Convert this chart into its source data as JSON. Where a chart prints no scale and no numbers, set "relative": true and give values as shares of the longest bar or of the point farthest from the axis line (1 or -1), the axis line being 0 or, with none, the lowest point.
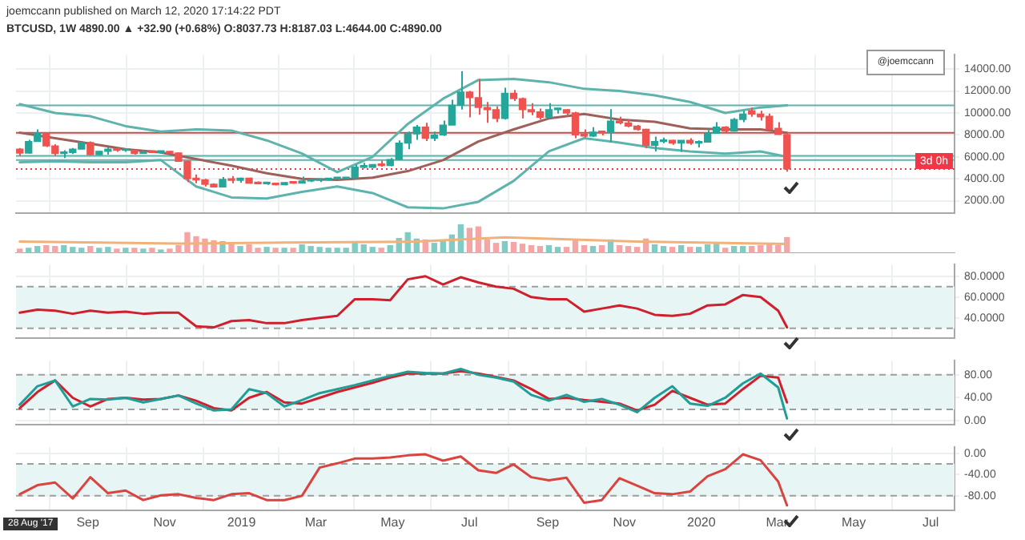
{
  "chart_data": [
    {
      "type": "candlestick",
      "title": "joemccann published on March 12, 2020 17:14:22 PDT",
      "subtitle": "BTCUSD, 1W 4890.00 ▲ +32.90 (+0.68%) O:8037.73 H:8187.03 L:4644.00 C:4890.00",
      "x": [
        "2018-07-09",
        "2018-07-16",
        "2018-07-23",
        "2018-07-30",
        "2018-08-06",
        "2018-08-13",
        "2018-08-20",
        "2018-08-27",
        "2018-09-03",
        "2018-09-10",
        "2018-09-17",
        "2018-09-24",
        "2018-10-01",
        "2018-10-08",
        "2018-10-15",
        "2018-10-22",
        "2018-10-29",
        "2018-11-05",
        "2018-11-12",
        "2018-11-19",
        "2018-11-26",
        "2018-12-03",
        "2018-12-10",
        "2018-12-17",
        "2018-12-24",
        "2018-12-31",
        "2019-01-07",
        "2019-01-14",
        "2019-01-21",
        "2019-01-28",
        "2019-02-04",
        "2019-02-11",
        "2019-02-18",
        "2019-02-25",
        "2019-03-04",
        "2019-03-11",
        "2019-03-18",
        "2019-03-25",
        "2019-04-01",
        "2019-04-08",
        "2019-04-15",
        "2019-04-22",
        "2019-04-29",
        "2019-05-06",
        "2019-05-13",
        "2019-05-20",
        "2019-05-27",
        "2019-06-03",
        "2019-06-10",
        "2019-06-17",
        "2019-06-24",
        "2019-07-01",
        "2019-07-08",
        "2019-07-15",
        "2019-07-22",
        "2019-07-29",
        "2019-08-05",
        "2019-08-12",
        "2019-08-19",
        "2019-08-26",
        "2019-09-02",
        "2019-09-09",
        "2019-09-16",
        "2019-09-23",
        "2019-09-30",
        "2019-10-07",
        "2019-10-14",
        "2019-10-21",
        "2019-10-28",
        "2019-11-04",
        "2019-11-11",
        "2019-11-18",
        "2019-11-25",
        "2019-12-02",
        "2019-12-09",
        "2019-12-16",
        "2019-12-23",
        "2019-12-30",
        "2020-01-06",
        "2020-01-13",
        "2020-01-20",
        "2020-01-27",
        "2020-02-03",
        "2020-02-10",
        "2020-02-17",
        "2020-02-24",
        "2020-03-02",
        "2020-03-09"
      ],
      "ohlc": [
        [
          6700,
          6800,
          6100,
          6350
        ],
        [
          6350,
          7550,
          6300,
          7400
        ],
        [
          7400,
          8500,
          7400,
          8200
        ],
        [
          8200,
          8250,
          6900,
          7000
        ],
        [
          7000,
          7150,
          6100,
          6300
        ],
        [
          6300,
          6600,
          5900,
          6400
        ],
        [
          6400,
          6800,
          6250,
          6700
        ],
        [
          6700,
          7400,
          6700,
          7300
        ],
        [
          7300,
          7400,
          6150,
          6200
        ],
        [
          6200,
          6550,
          6150,
          6500
        ],
        [
          6500,
          6850,
          6200,
          6700
        ],
        [
          6700,
          6800,
          6450,
          6600
        ],
        [
          6600,
          6700,
          6450,
          6600
        ],
        [
          6600,
          6650,
          6200,
          6300
        ],
        [
          6300,
          6600,
          6300,
          6450
        ],
        [
          6450,
          6500,
          6350,
          6400
        ],
        [
          6400,
          6450,
          6300,
          6400
        ],
        [
          6400,
          6550,
          6350,
          6350
        ],
        [
          6350,
          6400,
          5600,
          5600
        ],
        [
          5600,
          5650,
          3700,
          4000
        ],
        [
          4000,
          4400,
          3600,
          3900
        ],
        [
          3900,
          4000,
          3300,
          3500
        ],
        [
          3500,
          3600,
          3200,
          3250
        ],
        [
          3250,
          4150,
          3250,
          3950
        ],
        [
          3950,
          4250,
          3600,
          3850
        ],
        [
          3850,
          4100,
          3650,
          4050
        ],
        [
          4050,
          4100,
          3550,
          3600
        ],
        [
          3600,
          3750,
          3500,
          3550
        ],
        [
          3550,
          3650,
          3450,
          3550
        ],
        [
          3550,
          3600,
          3400,
          3450
        ],
        [
          3450,
          3700,
          3400,
          3650
        ],
        [
          3650,
          3700,
          3550,
          3600
        ],
        [
          3600,
          4200,
          3600,
          3800
        ],
        [
          3800,
          3900,
          3700,
          3850
        ],
        [
          3850,
          3950,
          3700,
          3900
        ],
        [
          3900,
          4050,
          3850,
          4000
        ],
        [
          4000,
          4100,
          3900,
          4000
        ],
        [
          4000,
          4150,
          3950,
          4100
        ],
        [
          4100,
          5300,
          4100,
          5050
        ],
        [
          5050,
          5450,
          4950,
          5050
        ],
        [
          5050,
          5350,
          5000,
          5300
        ],
        [
          5300,
          5650,
          5100,
          5200
        ],
        [
          5200,
          5900,
          5150,
          5750
        ],
        [
          5750,
          7500,
          5700,
          7250
        ],
        [
          7250,
          8300,
          6700,
          8100
        ],
        [
          8100,
          8900,
          7550,
          8700
        ],
        [
          8700,
          9100,
          7450,
          7700
        ],
        [
          7700,
          8300,
          7450,
          8000
        ],
        [
          8000,
          9300,
          7900,
          8900
        ],
        [
          8900,
          11200,
          8900,
          10700
        ],
        [
          10700,
          13800,
          10300,
          11900
        ],
        [
          11900,
          12000,
          9600,
          11400
        ],
        [
          11400,
          13100,
          9850,
          10500
        ],
        [
          10500,
          11000,
          9100,
          10300
        ],
        [
          10300,
          10600,
          9150,
          9500
        ],
        [
          9500,
          12300,
          9400,
          11800
        ],
        [
          11800,
          12100,
          11100,
          11300
        ],
        [
          11300,
          11400,
          9500,
          10300
        ],
        [
          10300,
          10900,
          9800,
          10100
        ],
        [
          10100,
          10400,
          9400,
          9600
        ],
        [
          9600,
          10900,
          9600,
          10300
        ],
        [
          10300,
          10450,
          9950,
          10300
        ],
        [
          10300,
          10350,
          9700,
          10000
        ],
        [
          10000,
          10100,
          7700,
          8000
        ],
        [
          8000,
          8500,
          7750,
          7900
        ],
        [
          7900,
          8700,
          7800,
          8250
        ],
        [
          8250,
          8400,
          7950,
          8200
        ],
        [
          8200,
          10350,
          7300,
          9250
        ],
        [
          9250,
          9650,
          8950,
          9100
        ],
        [
          9100,
          9400,
          8700,
          8800
        ],
        [
          8800,
          8900,
          8400,
          8500
        ],
        [
          8500,
          8550,
          6800,
          7050
        ],
        [
          7050,
          7850,
          6500,
          7400
        ],
        [
          7400,
          7750,
          7250,
          7500
        ],
        [
          7500,
          7550,
          7100,
          7250
        ],
        [
          7250,
          7500,
          6450,
          7500
        ],
        [
          7500,
          7700,
          7100,
          7250
        ],
        [
          7250,
          7500,
          6850,
          7350
        ],
        [
          7350,
          8450,
          7350,
          8150
        ],
        [
          8150,
          9150,
          8100,
          8700
        ],
        [
          8700,
          8800,
          8250,
          8350
        ],
        [
          8350,
          9550,
          8300,
          9400
        ],
        [
          9400,
          10200,
          9150,
          9900
        ],
        [
          10200,
          10500,
          9650,
          9900
        ],
        [
          9900,
          10200,
          9300,
          9650
        ],
        [
          9700,
          9950,
          8450,
          8500
        ],
        [
          8600,
          9150,
          8000,
          8040
        ],
        [
          8037.73,
          8187.03,
          4644,
          4890
        ]
      ],
      "colors": [
        "#ef5350",
        "#26a69a",
        "#26a69a",
        "#ef5350",
        "#ef5350",
        "#26a69a",
        "#26a69a",
        "#26a69a",
        "#ef5350",
        "#26a69a",
        "#26a69a",
        "#ef5350",
        "#26a69a",
        "#ef5350",
        "#26a69a",
        "#ef5350",
        "#26a69a",
        "#ef5350",
        "#ef5350",
        "#ef5350",
        "#ef5350",
        "#ef5350",
        "#ef5350",
        "#26a69a",
        "#ef5350",
        "#26a69a",
        "#ef5350",
        "#ef5350",
        "#26a69a",
        "#ef5350",
        "#26a69a",
        "#ef5350",
        "#26a69a",
        "#26a69a",
        "#26a69a",
        "#26a69a",
        "#26a69a",
        "#26a69a",
        "#26a69a",
        "#26a69a",
        "#26a69a",
        "#ef5350",
        "#26a69a",
        "#26a69a",
        "#26a69a",
        "#26a69a",
        "#ef5350",
        "#26a69a",
        "#26a69a",
        "#26a69a",
        "#26a69a",
        "#ef5350",
        "#ef5350",
        "#ef5350",
        "#ef5350",
        "#26a69a",
        "#ef5350",
        "#ef5350",
        "#ef5350",
        "#ef5350",
        "#26a69a",
        "#26a69a",
        "#ef5350",
        "#ef5350",
        "#ef5350",
        "#26a69a",
        "#ef5350",
        "#26a69a",
        "#ef5350",
        "#ef5350",
        "#ef5350",
        "#ef5350",
        "#26a69a",
        "#26a69a",
        "#ef5350",
        "#26a69a",
        "#ef5350",
        "#26a69a",
        "#26a69a",
        "#26a69a",
        "#ef5350",
        "#26a69a",
        "#26a69a",
        "#ef5350",
        "#ef5350",
        "#ef5350",
        "#ef5350",
        "#ef5350"
      ],
      "series": [
        {
          "type": "line",
          "color": "#5fb3ad",
          "x": [
            "2018-07-09",
            "2018-08-06",
            "2018-09-03",
            "2018-10-01",
            "2018-10-29",
            "2018-11-26",
            "2018-12-24",
            "2019-01-21",
            "2019-02-18",
            "2019-03-18",
            "2019-04-15",
            "2019-05-13",
            "2019-06-10",
            "2019-07-08",
            "2019-08-05",
            "2019-09-02",
            "2019-09-30",
            "2019-10-28",
            "2019-11-25",
            "2019-12-23",
            "2020-01-20",
            "2020-02-17",
            "2020-03-09"
          ],
          "values": [
            10800,
            10000,
            9700,
            8800,
            8300,
            8500,
            8400,
            7500,
            6300,
            4600,
            6000,
            9000,
            11300,
            13000,
            13100,
            12800,
            12200,
            12000,
            11600,
            11000,
            10000,
            10500,
            10700
          ]
        },
        {
          "type": "line",
          "color": "#a0605a",
          "x": [
            "2018-07-09",
            "2018-08-06",
            "2018-09-03",
            "2018-10-01",
            "2018-10-29",
            "2018-11-26",
            "2018-12-24",
            "2019-01-21",
            "2019-02-18",
            "2019-03-18",
            "2019-04-15",
            "2019-05-13",
            "2019-06-10",
            "2019-07-08",
            "2019-08-05",
            "2019-09-02",
            "2019-09-30",
            "2019-10-28",
            "2019-11-25",
            "2019-12-23",
            "2020-01-20",
            "2020-02-17",
            "2020-03-09"
          ],
          "values": [
            8200,
            7700,
            7200,
            6700,
            6400,
            5800,
            5200,
            4500,
            4000,
            3900,
            4100,
            4700,
            5700,
            7400,
            8500,
            9500,
            9900,
            9400,
            9200,
            8600,
            8500,
            8500,
            8200
          ]
        },
        {
          "type": "line",
          "color": "#5fb3ad",
          "x": [
            "2018-07-09",
            "2018-08-06",
            "2018-09-03",
            "2018-10-01",
            "2018-10-29",
            "2018-11-26",
            "2018-12-24",
            "2019-01-21",
            "2019-02-18",
            "2019-03-18",
            "2019-04-15",
            "2019-05-13",
            "2019-06-10",
            "2019-07-08",
            "2019-08-05",
            "2019-09-02",
            "2019-09-30",
            "2019-10-28",
            "2019-11-25",
            "2019-12-23",
            "2020-01-20",
            "2020-02-17",
            "2020-03-09"
          ],
          "values": [
            5500,
            5600,
            5500,
            5500,
            5700,
            3300,
            2300,
            2200,
            2800,
            3300,
            2700,
            1400,
            1300,
            1900,
            3800,
            6500,
            7700,
            7300,
            6800,
            6500,
            6300,
            6500,
            6000
          ]
        }
      ],
      "xlim": [
        "2018-07-06",
        "2020-07-20"
      ],
      "xticks": [
        {
          "value": "2018-09-01",
          "label": null
        },
        {
          "value": "2018-11-01",
          "label": null
        },
        {
          "value": "2019-01-01",
          "label": null
        },
        {
          "value": "2019-03-01",
          "label": null
        },
        {
          "value": "2019-05-01",
          "label": null
        },
        {
          "value": "2019-07-01",
          "label": null
        },
        {
          "value": "2019-09-01",
          "label": null
        },
        {
          "value": "2019-11-01",
          "label": null
        },
        {
          "value": "2020-01-01",
          "label": null
        },
        {
          "value": "2020-03-01",
          "label": null
        },
        {
          "value": "2020-05-01",
          "label": null
        },
        {
          "value": "2020-07-01",
          "label": null
        }
      ],
      "ylim": [
        900,
        15300
      ],
      "yticks": [
        {
          "value": 2000,
          "label": "2000.00"
        },
        {
          "value": 4000,
          "label": "4000.00"
        },
        {
          "value": 6000,
          "label": "6000.00"
        },
        {
          "value": 8000,
          "label": "8000.00"
        },
        {
          "value": 10000,
          "label": "10000.00"
        },
        {
          "value": 12000,
          "label": "12000.00"
        },
        {
          "value": 14000,
          "label": "14000.00"
        }
      ],
      "tick_labels": "y",
      "grid": true,
      "ref_lines": [
        {
          "axis": "y",
          "value": 10700,
          "color": "#5fb3ad"
        },
        {
          "axis": "y",
          "value": 8200,
          "color": "#c0504d"
        },
        {
          "axis": "y",
          "value": 6100,
          "color": "#5fb3ad"
        },
        {
          "axis": "y",
          "value": 5700,
          "color": "#5fb3ad"
        },
        {
          "axis": "y",
          "value": 4890,
          "color": "#f23645",
          "line_style": "dotted",
          "label": "3d 0h"
        }
      ],
      "annotations": [
        "@joemccann"
      ]
    },
    {
      "type": "bar",
      "relative": true,
      "x": [
        "2018-07-09",
        "2018-07-16",
        "2018-07-23",
        "2018-07-30",
        "2018-08-06",
        "2018-08-13",
        "2018-08-20",
        "2018-08-27",
        "2018-09-03",
        "2018-09-10",
        "2018-09-17",
        "2018-09-24",
        "2018-10-01",
        "2018-10-08",
        "2018-10-15",
        "2018-10-22",
        "2018-10-29",
        "2018-11-05",
        "2018-11-12",
        "2018-11-19",
        "2018-11-26",
        "2018-12-03",
        "2018-12-10",
        "2018-12-17",
        "2018-12-24",
        "2018-12-31",
        "2019-01-07",
        "2019-01-14",
        "2019-01-21",
        "2019-01-28",
        "2019-02-04",
        "2019-02-11",
        "2019-02-18",
        "2019-02-25",
        "2019-03-04",
        "2019-03-11",
        "2019-03-18",
        "2019-03-25",
        "2019-04-01",
        "2019-04-08",
        "2019-04-15",
        "2019-04-22",
        "2019-04-29",
        "2019-05-06",
        "2019-05-13",
        "2019-05-20",
        "2019-05-27",
        "2019-06-03",
        "2019-06-10",
        "2019-06-17",
        "2019-06-24",
        "2019-07-01",
        "2019-07-08",
        "2019-07-15",
        "2019-07-22",
        "2019-07-29",
        "2019-08-05",
        "2019-08-12",
        "2019-08-19",
        "2019-08-26",
        "2019-09-02",
        "2019-09-09",
        "2019-09-16",
        "2019-09-23",
        "2019-09-30",
        "2019-10-07",
        "2019-10-14",
        "2019-10-21",
        "2019-10-28",
        "2019-11-04",
        "2019-11-11",
        "2019-11-18",
        "2019-11-25",
        "2019-12-02",
        "2019-12-09",
        "2019-12-16",
        "2019-12-23",
        "2019-12-30",
        "2020-01-06",
        "2020-01-13",
        "2020-01-20",
        "2020-01-27",
        "2020-02-03",
        "2020-02-10",
        "2020-02-17",
        "2020-02-24",
        "2020-03-02",
        "2020-03-09"
      ],
      "xlim": [
        "2018-07-06",
        "2020-07-20"
      ],
      "tick_labels": false,
      "series": [
        {
          "type": "bar",
          "values": [
            0.14,
            0.17,
            0.23,
            0.26,
            0.23,
            0.26,
            0.2,
            0.17,
            0.23,
            0.17,
            0.2,
            0.14,
            0.17,
            0.17,
            0.14,
            0.17,
            0.11,
            0.14,
            0.26,
            0.71,
            0.57,
            0.49,
            0.43,
            0.4,
            0.34,
            0.23,
            0.29,
            0.17,
            0.2,
            0.17,
            0.17,
            0.17,
            0.29,
            0.23,
            0.2,
            0.17,
            0.17,
            0.17,
            0.4,
            0.29,
            0.2,
            0.17,
            0.26,
            0.51,
            0.71,
            0.49,
            0.46,
            0.34,
            0.4,
            0.63,
            1,
            0.86,
            0.91,
            0.46,
            0.34,
            0.4,
            0.37,
            0.31,
            0.26,
            0.23,
            0.26,
            0.2,
            0.2,
            0.43,
            0.26,
            0.23,
            0.26,
            0.46,
            0.26,
            0.23,
            0.2,
            0.49,
            0.29,
            0.23,
            0.2,
            0.26,
            0.2,
            0.2,
            0.29,
            0.31,
            0.17,
            0.23,
            0.23,
            0.23,
            0.26,
            0.29,
            0.26,
            0.54
          ],
          "colors": [
            "#f5a5a5",
            "#80cbc4",
            "#80cbc4",
            "#f5a5a5",
            "#f5a5a5",
            "#80cbc4",
            "#80cbc4",
            "#80cbc4",
            "#f5a5a5",
            "#80cbc4",
            "#80cbc4",
            "#f5a5a5",
            "#80cbc4",
            "#f5a5a5",
            "#80cbc4",
            "#f5a5a5",
            "#80cbc4",
            "#f5a5a5",
            "#f5a5a5",
            "#f5a5a5",
            "#f5a5a5",
            "#f5a5a5",
            "#f5a5a5",
            "#80cbc4",
            "#f5a5a5",
            "#80cbc4",
            "#f5a5a5",
            "#f5a5a5",
            "#80cbc4",
            "#f5a5a5",
            "#80cbc4",
            "#f5a5a5",
            "#80cbc4",
            "#80cbc4",
            "#80cbc4",
            "#80cbc4",
            "#80cbc4",
            "#80cbc4",
            "#80cbc4",
            "#80cbc4",
            "#80cbc4",
            "#f5a5a5",
            "#80cbc4",
            "#80cbc4",
            "#80cbc4",
            "#80cbc4",
            "#f5a5a5",
            "#80cbc4",
            "#80cbc4",
            "#80cbc4",
            "#80cbc4",
            "#f5a5a5",
            "#f5a5a5",
            "#f5a5a5",
            "#f5a5a5",
            "#80cbc4",
            "#f5a5a5",
            "#f5a5a5",
            "#f5a5a5",
            "#f5a5a5",
            "#80cbc4",
            "#80cbc4",
            "#f5a5a5",
            "#f5a5a5",
            "#f5a5a5",
            "#80cbc4",
            "#f5a5a5",
            "#80cbc4",
            "#f5a5a5",
            "#f5a5a5",
            "#f5a5a5",
            "#f5a5a5",
            "#80cbc4",
            "#80cbc4",
            "#f5a5a5",
            "#80cbc4",
            "#f5a5a5",
            "#80cbc4",
            "#80cbc4",
            "#80cbc4",
            "#f5a5a5",
            "#80cbc4",
            "#80cbc4",
            "#f5a5a5",
            "#f5a5a5",
            "#f5a5a5",
            "#f5a5a5",
            "#f5a5a5"
          ]
        },
        {
          "type": "line",
          "color": "#f0b27a",
          "x": [
            "2018-07-09",
            "2018-11-12",
            "2019-02-04",
            "2019-05-20",
            "2019-07-29",
            "2019-11-11",
            "2020-03-09"
          ],
          "values": [
            0.4,
            0.33,
            0.37,
            0.4,
            0.55,
            0.4,
            0.32
          ]
        }
      ]
    },
    {
      "type": "line",
      "x": [
        "2018-07-09",
        "2018-07-23",
        "2018-08-06",
        "2018-08-20",
        "2018-09-03",
        "2018-09-17",
        "2018-10-01",
        "2018-10-15",
        "2018-10-29",
        "2018-11-12",
        "2018-11-26",
        "2018-12-10",
        "2018-12-24",
        "2019-01-07",
        "2019-01-21",
        "2019-02-04",
        "2019-02-18",
        "2019-03-04",
        "2019-03-18",
        "2019-04-01",
        "2019-04-15",
        "2019-04-29",
        "2019-05-13",
        "2019-05-27",
        "2019-06-10",
        "2019-06-24",
        "2019-07-08",
        "2019-07-22",
        "2019-08-05",
        "2019-08-19",
        "2019-09-02",
        "2019-09-16",
        "2019-09-30",
        "2019-10-14",
        "2019-10-28",
        "2019-11-11",
        "2019-11-25",
        "2019-12-09",
        "2019-12-23",
        "2020-01-06",
        "2020-01-20",
        "2020-02-03",
        "2020-02-17",
        "2020-03-02",
        "2020-03-09"
      ],
      "series": [
        {
          "type": "line",
          "color": "#d0202e",
          "values": [
            45,
            48,
            47,
            44,
            47,
            45,
            46,
            44,
            45,
            45,
            32,
            31,
            37,
            38,
            35,
            35,
            38,
            40,
            42,
            58,
            58,
            57,
            77,
            80,
            72,
            79,
            74,
            70,
            68,
            60,
            58,
            58,
            46,
            49,
            52,
            49,
            43,
            42,
            44,
            52,
            53,
            62,
            60,
            47,
            31
          ]
        }
      ],
      "xlim": [
        "2018-07-06",
        "2020-07-20"
      ],
      "xticks": [
        {
          "value": "2018-09-01",
          "label": null
        },
        {
          "value": "2018-11-01",
          "label": null
        },
        {
          "value": "2019-01-01",
          "label": null
        },
        {
          "value": "2019-03-01",
          "label": null
        },
        {
          "value": "2019-05-01",
          "label": null
        },
        {
          "value": "2019-07-01",
          "label": null
        },
        {
          "value": "2019-09-01",
          "label": null
        },
        {
          "value": "2019-11-01",
          "label": null
        },
        {
          "value": "2020-01-01",
          "label": null
        },
        {
          "value": "2020-03-01",
          "label": null
        },
        {
          "value": "2020-05-01",
          "label": null
        },
        {
          "value": "2020-07-01",
          "label": null
        }
      ],
      "ylim": [
        21,
        91
      ],
      "yticks": [
        {
          "value": 40,
          "label": "40.0000"
        },
        {
          "value": 60,
          "label": "60.0000"
        },
        {
          "value": 80,
          "label": "80.0000"
        }
      ],
      "tick_labels": "y",
      "grid": true,
      "ref_lines": [
        {
          "axis": "y",
          "value": 70,
          "color": "#9e9e9e",
          "line_style": "dashed"
        },
        {
          "axis": "y",
          "value": 30,
          "color": "#9e9e9e",
          "line_style": "dashed"
        }
      ],
      "bands": [
        {
          "axis": "y",
          "from": 30,
          "to": 70,
          "color": "#e8f5f5"
        }
      ]
    },
    {
      "type": "line",
      "x": [
        "2018-07-09",
        "2018-07-23",
        "2018-08-06",
        "2018-08-20",
        "2018-09-03",
        "2018-09-17",
        "2018-10-01",
        "2018-10-15",
        "2018-10-29",
        "2018-11-12",
        "2018-11-26",
        "2018-12-10",
        "2018-12-24",
        "2019-01-07",
        "2019-01-21",
        "2019-02-04",
        "2019-02-18",
        "2019-03-04",
        "2019-03-18",
        "2019-04-01",
        "2019-04-15",
        "2019-04-29",
        "2019-05-13",
        "2019-05-27",
        "2019-06-10",
        "2019-06-24",
        "2019-07-08",
        "2019-07-22",
        "2019-08-05",
        "2019-08-19",
        "2019-09-02",
        "2019-09-16",
        "2019-09-30",
        "2019-10-14",
        "2019-10-28",
        "2019-11-11",
        "2019-11-25",
        "2019-12-09",
        "2019-12-23",
        "2020-01-06",
        "2020-01-20",
        "2020-02-03",
        "2020-02-17",
        "2020-03-02",
        "2020-03-09"
      ],
      "series": [
        {
          "type": "line",
          "color": "#1f9e98",
          "values": [
            28,
            60,
            70,
            25,
            38,
            37,
            40,
            32,
            38,
            44,
            30,
            18,
            20,
            55,
            48,
            25,
            36,
            48,
            55,
            62,
            70,
            78,
            85,
            83,
            82,
            90,
            80,
            75,
            68,
            45,
            35,
            45,
            33,
            38,
            28,
            15,
            40,
            60,
            30,
            26,
            40,
            65,
            82,
            58,
            4
          ]
        },
        {
          "type": "line",
          "color": "#d0202e",
          "values": [
            22,
            50,
            70,
            40,
            25,
            38,
            40,
            37,
            38,
            44,
            35,
            22,
            18,
            40,
            50,
            32,
            30,
            40,
            50,
            58,
            66,
            75,
            82,
            82,
            82,
            86,
            82,
            76,
            70,
            55,
            38,
            40,
            36,
            33,
            30,
            18,
            28,
            52,
            40,
            28,
            30,
            55,
            78,
            75,
            32
          ]
        }
      ],
      "xlim": [
        "2018-07-06",
        "2020-07-20"
      ],
      "xticks": [
        {
          "value": "2018-09-01",
          "label": null
        },
        {
          "value": "2018-11-01",
          "label": null
        },
        {
          "value": "2019-01-01",
          "label": null
        },
        {
          "value": "2019-03-01",
          "label": null
        },
        {
          "value": "2019-05-01",
          "label": null
        },
        {
          "value": "2019-07-01",
          "label": null
        },
        {
          "value": "2019-09-01",
          "label": null
        },
        {
          "value": "2019-11-01",
          "label": null
        },
        {
          "value": "2020-01-01",
          "label": null
        },
        {
          "value": "2020-03-01",
          "label": null
        },
        {
          "value": "2020-05-01",
          "label": null
        },
        {
          "value": "2020-07-01",
          "label": null
        }
      ],
      "ylim": [
        -6,
        104
      ],
      "yticks": [
        {
          "value": 0,
          "label": "0.00"
        },
        {
          "value": 40,
          "label": "40.00"
        },
        {
          "value": 80,
          "label": "80.00"
        }
      ],
      "tick_labels": "y",
      "grid": true,
      "ref_lines": [
        {
          "axis": "y",
          "value": 80,
          "color": "#9e9e9e",
          "line_style": "dashed"
        },
        {
          "axis": "y",
          "value": 20,
          "color": "#9e9e9e",
          "line_style": "dashed"
        }
      ],
      "bands": [
        {
          "axis": "y",
          "from": 20,
          "to": 80,
          "color": "#e8f5f5"
        }
      ]
    },
    {
      "type": "line",
      "x": [
        "2018-07-09",
        "2018-07-23",
        "2018-08-06",
        "2018-08-20",
        "2018-09-03",
        "2018-09-17",
        "2018-10-01",
        "2018-10-15",
        "2018-10-29",
        "2018-11-12",
        "2018-11-26",
        "2018-12-10",
        "2018-12-24",
        "2019-01-07",
        "2019-01-21",
        "2019-02-04",
        "2019-02-18",
        "2019-03-04",
        "2019-03-18",
        "2019-04-01",
        "2019-04-15",
        "2019-04-29",
        "2019-05-13",
        "2019-05-27",
        "2019-06-10",
        "2019-06-24",
        "2019-07-08",
        "2019-07-22",
        "2019-08-05",
        "2019-08-19",
        "2019-09-02",
        "2019-09-16",
        "2019-09-30",
        "2019-10-14",
        "2019-10-28",
        "2019-11-11",
        "2019-11-25",
        "2019-12-09",
        "2019-12-23",
        "2020-01-06",
        "2020-01-20",
        "2020-02-03",
        "2020-02-17",
        "2020-03-02",
        "2020-03-09"
      ],
      "series": [
        {
          "type": "line",
          "color": "#d9443f",
          "values": [
            -77,
            -60,
            -55,
            -85,
            -45,
            -75,
            -70,
            -88,
            -79,
            -77,
            -84,
            -88,
            -77,
            -75,
            -88,
            -88,
            -80,
            -27,
            -19,
            -10,
            -10,
            -8,
            -4,
            -2,
            -14,
            -6,
            -32,
            -37,
            -21,
            -45,
            -51,
            -46,
            -93,
            -88,
            -47,
            -61,
            -75,
            -77,
            -72,
            -43,
            -30,
            -2,
            -13,
            -53,
            -98
          ]
        }
      ],
      "xlim": [
        "2018-07-06",
        "2020-07-20"
      ],
      "xticks": [
        {
          "value": "2018-09-01",
          "label": "Sep"
        },
        {
          "value": "2018-11-01",
          "label": "Nov"
        },
        {
          "value": "2019-01-01",
          "label": "2019"
        },
        {
          "value": "2019-03-01",
          "label": "Mar"
        },
        {
          "value": "2019-05-01",
          "label": "May"
        },
        {
          "value": "2019-07-01",
          "label": "Jul"
        },
        {
          "value": "2019-09-01",
          "label": "Sep"
        },
        {
          "value": "2019-11-01",
          "label": "Nov"
        },
        {
          "value": "2020-01-01",
          "label": "2020"
        },
        {
          "value": "2020-03-01",
          "label": "Mar"
        },
        {
          "value": "2020-05-01",
          "label": "May"
        },
        {
          "value": "2020-07-01",
          "label": "Jul"
        }
      ],
      "ylim": [
        -107,
        11
      ],
      "yticks": [
        {
          "value": 0,
          "label": "0.00"
        },
        {
          "value": -40,
          "label": "-40.00"
        },
        {
          "value": -80,
          "label": "-80.00"
        }
      ],
      "grid": true,
      "ref_lines": [
        {
          "axis": "y",
          "value": -20,
          "color": "#9e9e9e",
          "line_style": "dashed"
        },
        {
          "axis": "y",
          "value": -80,
          "color": "#9e9e9e",
          "line_style": "dashed"
        }
      ],
      "bands": [
        {
          "axis": "y",
          "from": -80,
          "to": -20,
          "color": "#e8f5f5"
        }
      ],
      "annotations": [
        "28 Aug '17"
      ]
    }
  ]
}
